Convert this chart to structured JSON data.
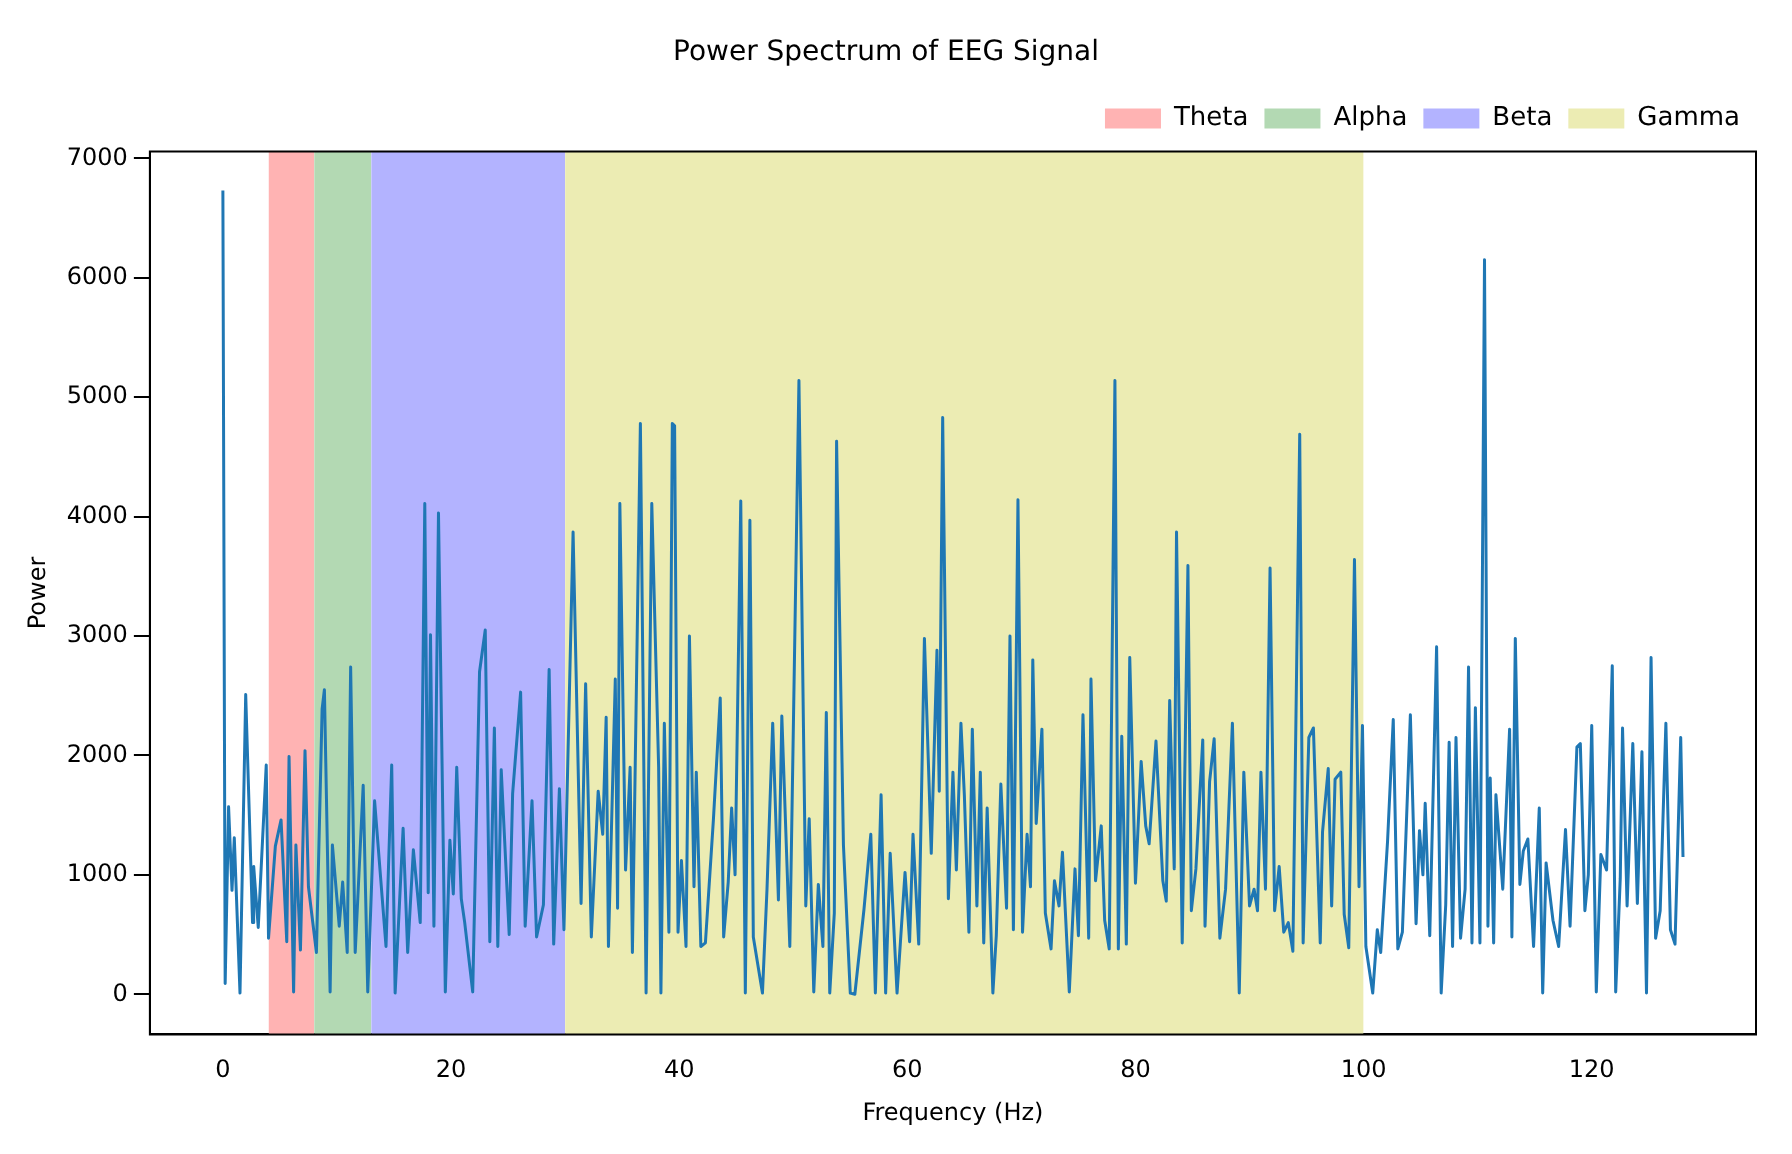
{
  "chart_data": {
    "type": "line",
    "title": "Power Spectrum of EEG Signal",
    "xlabel": "Frequency (Hz)",
    "ylabel": "Power",
    "xlim": [
      -6.4,
      134.4
    ],
    "xticks": [
      0,
      20,
      40,
      60,
      80,
      100,
      120
    ],
    "ylim": [
      -336,
      7056
    ],
    "yticks": [
      0,
      1000,
      2000,
      3000,
      4000,
      5000,
      6000,
      7000
    ],
    "grid": false,
    "legend": "top right",
    "marker": "none",
    "line_style": "solid",
    "bands": [
      {
        "axis": "x",
        "from": 4,
        "to": 8,
        "label": "Theta",
        "color": "#ffb3b3"
      },
      {
        "axis": "x",
        "from": 8,
        "to": 13,
        "label": "Alpha",
        "color": "#b3d9b3"
      },
      {
        "axis": "x",
        "from": 13,
        "to": 30,
        "label": "Beta",
        "color": "#b3b3ff"
      },
      {
        "axis": "x",
        "from": 30,
        "to": 100,
        "label": "Gamma",
        "color": "#ececb3"
      }
    ],
    "series": [
      {
        "color": "#1f77b4",
        "x": [
          0,
          0.2,
          0.5,
          0.8,
          1.0,
          1.5,
          2.0,
          2.6,
          2.7,
          3.1,
          3.8,
          4.0,
          4.6,
          5.1,
          5.6,
          5.8,
          6.2,
          6.4,
          6.8,
          7.2,
          7.5,
          8.2,
          8.7,
          8.9,
          9.4,
          9.6,
          10.2,
          10.5,
          10.9,
          11.2,
          11.6,
          12.3,
          12.7,
          13.3,
          14.3,
          14.8,
          15.1,
          15.8,
          16.2,
          16.7,
          17.3,
          17.7,
          18.0,
          18.2,
          18.5,
          18.9,
          19.5,
          19.9,
          20.2,
          20.5,
          20.9,
          21.2,
          21.9,
          22.5,
          23.0,
          23.4,
          23.8,
          24.1,
          24.4,
          25.1,
          25.4,
          26.1,
          26.5,
          27.1,
          27.5,
          28.1,
          28.6,
          29.0,
          29.5,
          29.9,
          30.7,
          31.4,
          31.8,
          32.3,
          32.9,
          33.3,
          33.6,
          33.8,
          34.4,
          34.6,
          34.8,
          35.3,
          35.7,
          35.9,
          36.6,
          37.1,
          37.6,
          38.2,
          38.4,
          38.7,
          39.1,
          39.4,
          39.6,
          39.9,
          40.2,
          40.6,
          40.9,
          41.3,
          41.5,
          41.9,
          42.3,
          43.0,
          43.6,
          43.9,
          44.3,
          44.6,
          44.9,
          45.4,
          45.8,
          46.2,
          46.5,
          47.3,
          47.7,
          48.2,
          48.7,
          49.0,
          49.7,
          50.5,
          51.1,
          51.4,
          51.8,
          52.2,
          52.6,
          52.9,
          53.2,
          53.6,
          53.8,
          54.4,
          55.0,
          55.4,
          56.2,
          56.8,
          57.2,
          57.7,
          58.1,
          58.5,
          59.1,
          59.8,
          60.2,
          60.5,
          61.0,
          61.5,
          62.1,
          62.6,
          62.8,
          63.1,
          63.6,
          64.0,
          64.3,
          64.7,
          65.0,
          65.4,
          65.7,
          66.1,
          66.4,
          66.7,
          67.0,
          67.5,
          67.8,
          68.2,
          68.7,
          69.0,
          69.3,
          69.7,
          70.1,
          70.5,
          70.8,
          71.0,
          71.3,
          71.8,
          72.1,
          72.6,
          72.9,
          73.3,
          73.6,
          74.2,
          74.7,
          75.0,
          75.4,
          75.9,
          76.1,
          76.5,
          77.0,
          77.3,
          77.7,
          78.2,
          78.5,
          78.8,
          79.2,
          79.5,
          80.0,
          80.5,
          80.9,
          81.2,
          81.8,
          82.4,
          82.7,
          83.0,
          83.4,
          83.6,
          84.1,
          84.6,
          84.9,
          85.3,
          85.9,
          86.1,
          86.5,
          86.9,
          87.4,
          87.9,
          88.5,
          89.1,
          89.5,
          90.0,
          90.4,
          90.7,
          91.0,
          91.4,
          91.8,
          92.2,
          92.6,
          93.0,
          93.4,
          93.8,
          94.4,
          94.7,
          95.2,
          95.6,
          96.2,
          96.4,
          96.9,
          97.2,
          97.5,
          98.0,
          98.3,
          98.7,
          99.2,
          99.6,
          99.9,
          100.2,
          100.8,
          101.2,
          101.5,
          102.1,
          102.6,
          103.0,
          103.4,
          104.1,
          104.6,
          104.9,
          105.2,
          105.4,
          105.8,
          106.4,
          106.8,
          107.2,
          107.5,
          107.8,
          108.1,
          108.5,
          108.9,
          109.2,
          109.5,
          109.8,
          110.2,
          110.6,
          110.9,
          111.1,
          111.4,
          111.6,
          112.2,
          112.8,
          113.0,
          113.3,
          113.7,
          114.0,
          114.4,
          114.9,
          115.4,
          115.7,
          116.0,
          116.6,
          117.1,
          117.7,
          118.1,
          118.7,
          119.0,
          119.4,
          119.7,
          120.0,
          120.4,
          120.8,
          121.3,
          121.8,
          122.1,
          122.5,
          122.7,
          123.1,
          123.6,
          124.0,
          124.4,
          124.8,
          125.2,
          125.6,
          126.0,
          126.5,
          126.9,
          127.3,
          127.8,
          128.0
        ],
        "values": [
          6730,
          90,
          1570,
          870,
          1310,
          10,
          2510,
          600,
          1070,
          560,
          1920,
          470,
          1240,
          1460,
          440,
          1990,
          20,
          1250,
          370,
          2040,
          900,
          350,
          2390,
          2550,
          20,
          1250,
          570,
          940,
          350,
          2740,
          350,
          1750,
          20,
          1620,
          400,
          1920,
          10,
          1390,
          350,
          1210,
          600,
          4110,
          850,
          3010,
          570,
          4030,
          20,
          1290,
          840,
          1900,
          800,
          600,
          20,
          2700,
          3050,
          440,
          2230,
          400,
          1880,
          500,
          1680,
          2530,
          570,
          1620,
          480,
          750,
          2720,
          420,
          1720,
          540,
          3870,
          760,
          2600,
          480,
          1700,
          1340,
          2320,
          400,
          2640,
          720,
          4110,
          1040,
          1900,
          350,
          4780,
          10,
          4110,
          1900,
          10,
          2270,
          520,
          4780,
          4760,
          520,
          1120,
          400,
          3000,
          900,
          1860,
          400,
          430,
          1460,
          2480,
          480,
          940,
          1560,
          1000,
          4130,
          10,
          3970,
          480,
          10,
          880,
          2270,
          790,
          2330,
          400,
          5140,
          740,
          1470,
          20,
          920,
          400,
          2360,
          10,
          680,
          4630,
          1250,
          10,
          0,
          710,
          1340,
          10,
          1670,
          10,
          1180,
          10,
          1020,
          440,
          1340,
          420,
          2980,
          1180,
          2880,
          1700,
          4830,
          800,
          1860,
          1040,
          2270,
          1670,
          520,
          2220,
          740,
          1860,
          430,
          1560,
          10,
          490,
          1760,
          720,
          3000,
          540,
          4140,
          520,
          1340,
          900,
          2800,
          1430,
          2220,
          680,
          380,
          950,
          740,
          1190,
          20,
          1050,
          490,
          2340,
          470,
          2640,
          950,
          1410,
          620,
          380,
          5140,
          380,
          2160,
          420,
          2820,
          930,
          1950,
          1410,
          1260,
          2120,
          950,
          780,
          2460,
          1050,
          3870,
          430,
          3590,
          700,
          1050,
          2130,
          570,
          1780,
          2140,
          470,
          880,
          2270,
          10,
          1860,
          740,
          880,
          700,
          1860,
          880,
          3570,
          700,
          1070,
          520,
          600,
          360,
          4690,
          430,
          2150,
          2230,
          430,
          1360,
          1890,
          740,
          1800,
          1860,
          670,
          390,
          3640,
          900,
          2250,
          400,
          10,
          540,
          350,
          1280,
          2300,
          380,
          520,
          2340,
          590,
          1370,
          1000,
          1600,
          490,
          2910,
          10,
          750,
          2110,
          400,
          2150,
          470,
          880,
          2740,
          430,
          2400,
          430,
          6150,
          570,
          1810,
          430,
          1670,
          880,
          2220,
          480,
          2980,
          920,
          1200,
          1300,
          400,
          1560,
          10,
          1100,
          620,
          400,
          1380,
          570,
          2070,
          2100,
          700,
          1000,
          2250,
          20,
          1170,
          1040,
          2750,
          20,
          970,
          2230,
          740,
          2100,
          760,
          2030,
          10,
          2820,
          470,
          700,
          2270,
          540,
          420,
          2150,
          1150
        ]
      }
    ]
  }
}
